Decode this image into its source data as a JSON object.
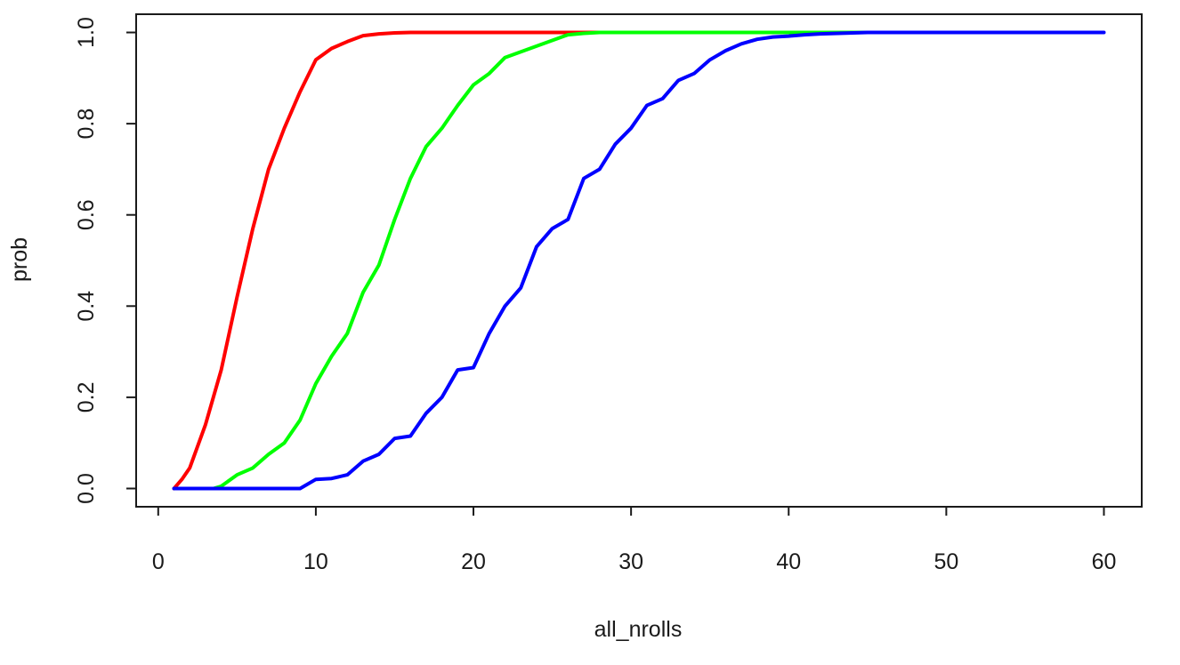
{
  "chart_data": {
    "type": "line",
    "title": "",
    "xlabel": "all_nrolls",
    "ylabel": "prob",
    "xlim": [
      -1.4,
      62.4
    ],
    "ylim": [
      -0.04,
      1.04
    ],
    "xticks": [
      0,
      10,
      20,
      30,
      40,
      50,
      60
    ],
    "xtick_labels": [
      "0",
      "10",
      "20",
      "30",
      "40",
      "50",
      "60"
    ],
    "yticks": [
      0.0,
      0.2,
      0.4,
      0.6,
      0.8,
      1.0
    ],
    "ytick_labels": [
      "0.0",
      "0.2",
      "0.4",
      "0.6",
      "0.8",
      "1.0"
    ],
    "grid": false,
    "legend": "none",
    "series": [
      {
        "color": "#ff0000",
        "x": [
          1,
          1.5,
          2,
          3,
          4,
          5,
          6,
          7,
          8,
          9,
          10,
          11,
          12,
          13,
          14,
          15,
          16,
          18,
          20,
          25,
          31
        ],
        "y": [
          0.0,
          0.02,
          0.045,
          0.14,
          0.26,
          0.42,
          0.57,
          0.7,
          0.79,
          0.87,
          0.94,
          0.965,
          0.98,
          0.993,
          0.997,
          0.999,
          1.0,
          1.0,
          1.0,
          1.0,
          1.0
        ]
      },
      {
        "color": "#00ff00",
        "x": [
          3.5,
          4,
          5,
          6,
          7,
          8,
          9,
          10,
          11,
          12,
          13,
          14,
          15,
          16,
          17,
          18,
          19,
          20,
          21,
          22,
          24,
          26,
          27,
          28,
          30,
          49
        ],
        "y": [
          0.0,
          0.005,
          0.03,
          0.045,
          0.075,
          0.1,
          0.15,
          0.23,
          0.29,
          0.34,
          0.43,
          0.49,
          0.59,
          0.68,
          0.75,
          0.79,
          0.84,
          0.885,
          0.91,
          0.945,
          0.97,
          0.995,
          0.998,
          1.0,
          1.0,
          1.0
        ]
      },
      {
        "color": "#0000ff",
        "x": [
          1,
          9,
          10,
          11,
          12,
          13,
          14,
          15,
          16,
          17,
          18,
          19,
          20,
          21,
          22,
          23,
          24,
          25,
          26,
          27,
          28,
          29,
          30,
          31,
          32,
          33,
          34,
          35,
          36,
          37,
          38,
          39,
          40,
          41,
          42,
          45,
          50,
          55,
          60
        ],
        "y": [
          0.0,
          0.0,
          0.02,
          0.022,
          0.03,
          0.06,
          0.075,
          0.11,
          0.115,
          0.165,
          0.2,
          0.26,
          0.265,
          0.34,
          0.4,
          0.44,
          0.53,
          0.57,
          0.59,
          0.68,
          0.7,
          0.755,
          0.79,
          0.84,
          0.855,
          0.895,
          0.91,
          0.94,
          0.96,
          0.975,
          0.985,
          0.99,
          0.992,
          0.995,
          0.997,
          1.0,
          1.0,
          1.0,
          1.0
        ]
      }
    ]
  }
}
